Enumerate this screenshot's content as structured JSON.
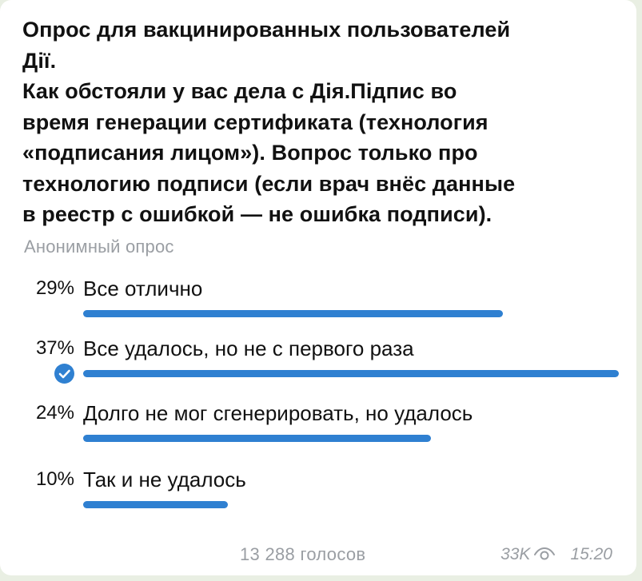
{
  "poll": {
    "question_lines": [
      "Опрос для вакцинированных пользователей",
      "Дії.",
      "Как обстояли у вас дела с Дія.Підпис во",
      "время генерации сертификата (технология",
      "«подписания лицом»). Вопрос только про",
      "технологию подписи (если врач внёс данные",
      "в реестр с ошибкой — не ошибка подписи)."
    ],
    "type_label": "Анонимный опрос",
    "options": [
      {
        "percent": "29%",
        "label": "Все отлично",
        "fraction": 0.29,
        "chosen": false
      },
      {
        "percent": "37%",
        "label": "Все удалось, но не с первого раза",
        "fraction": 0.37,
        "chosen": true
      },
      {
        "percent": "24%",
        "label": "Долго не мог сгенерировать, но удалось",
        "fraction": 0.24,
        "chosen": false
      },
      {
        "percent": "10%",
        "label": "Так и не удалось",
        "fraction": 0.1,
        "chosen": false
      }
    ],
    "votes_label": "13 288 голосов"
  },
  "message_meta": {
    "views": "33K",
    "time": "15:20",
    "views_icon": "eye-icon"
  },
  "colors": {
    "bar": "#2f80d1",
    "muted_text": "#9a9ea3",
    "text": "#111111",
    "background": "#e9efe3"
  }
}
